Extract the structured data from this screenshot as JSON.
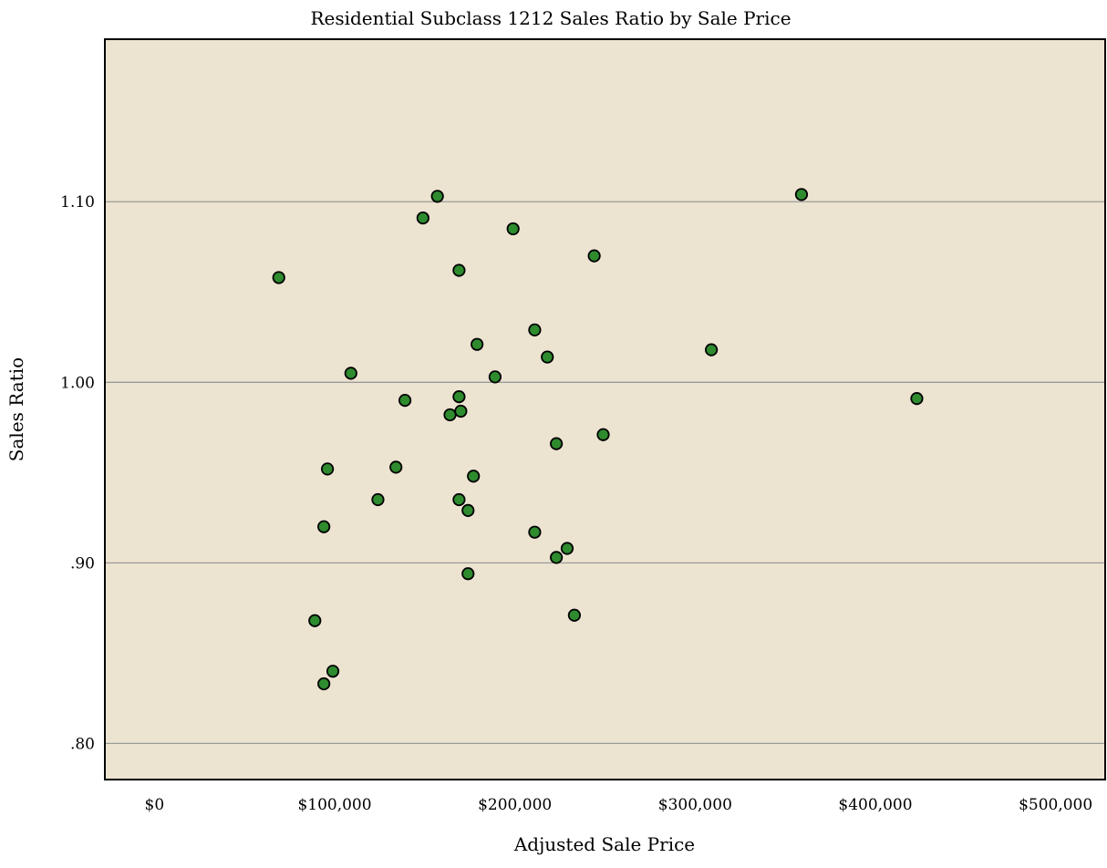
{
  "chart_data": {
    "type": "scatter",
    "title": "Residential Subclass 1212 Sales Ratio by Sale Price",
    "xlabel": "Adjusted Sale Price",
    "ylabel": "Sales Ratio",
    "xlim": [
      -27500,
      527500
    ],
    "ylim": [
      0.78,
      1.19
    ],
    "x_ticks": [
      {
        "value": 0,
        "label": "$0"
      },
      {
        "value": 100000,
        "label": "$100,000"
      },
      {
        "value": 200000,
        "label": "$200,000"
      },
      {
        "value": 300000,
        "label": "$300,000"
      },
      {
        "value": 400000,
        "label": "$400,000"
      },
      {
        "value": 500000,
        "label": "$500,000"
      }
    ],
    "y_ticks": [
      {
        "value": 0.8,
        "label": ".80"
      },
      {
        "value": 0.9,
        "label": ".90"
      },
      {
        "value": 1.0,
        "label": "1.00"
      },
      {
        "value": 1.1,
        "label": "1.10"
      }
    ],
    "grid": "horizontal",
    "colors": {
      "plot_background": "#ece4d0",
      "point_fill": "#2e8b2e",
      "gridline": "#9a9a9a"
    },
    "points": [
      {
        "x": 69000,
        "y": 1.058
      },
      {
        "x": 89000,
        "y": 0.868
      },
      {
        "x": 94000,
        "y": 0.92
      },
      {
        "x": 94000,
        "y": 0.833
      },
      {
        "x": 96000,
        "y": 0.952
      },
      {
        "x": 99000,
        "y": 0.84
      },
      {
        "x": 109000,
        "y": 1.005
      },
      {
        "x": 124000,
        "y": 0.935
      },
      {
        "x": 134000,
        "y": 0.953
      },
      {
        "x": 139000,
        "y": 0.99
      },
      {
        "x": 149000,
        "y": 1.091
      },
      {
        "x": 157000,
        "y": 1.103
      },
      {
        "x": 164000,
        "y": 0.982
      },
      {
        "x": 169000,
        "y": 1.062
      },
      {
        "x": 169000,
        "y": 0.992
      },
      {
        "x": 170000,
        "y": 0.984
      },
      {
        "x": 169000,
        "y": 0.935
      },
      {
        "x": 174000,
        "y": 0.929
      },
      {
        "x": 174000,
        "y": 0.894
      },
      {
        "x": 177000,
        "y": 0.948
      },
      {
        "x": 179000,
        "y": 1.021
      },
      {
        "x": 189000,
        "y": 1.003
      },
      {
        "x": 199000,
        "y": 1.085
      },
      {
        "x": 211000,
        "y": 1.029
      },
      {
        "x": 211000,
        "y": 0.917
      },
      {
        "x": 218000,
        "y": 1.014
      },
      {
        "x": 223000,
        "y": 0.966
      },
      {
        "x": 223000,
        "y": 0.903
      },
      {
        "x": 229000,
        "y": 0.908
      },
      {
        "x": 233000,
        "y": 0.871
      },
      {
        "x": 244000,
        "y": 1.07
      },
      {
        "x": 249000,
        "y": 0.971
      },
      {
        "x": 309000,
        "y": 1.018
      },
      {
        "x": 359000,
        "y": 1.104
      },
      {
        "x": 423000,
        "y": 0.991
      }
    ]
  }
}
